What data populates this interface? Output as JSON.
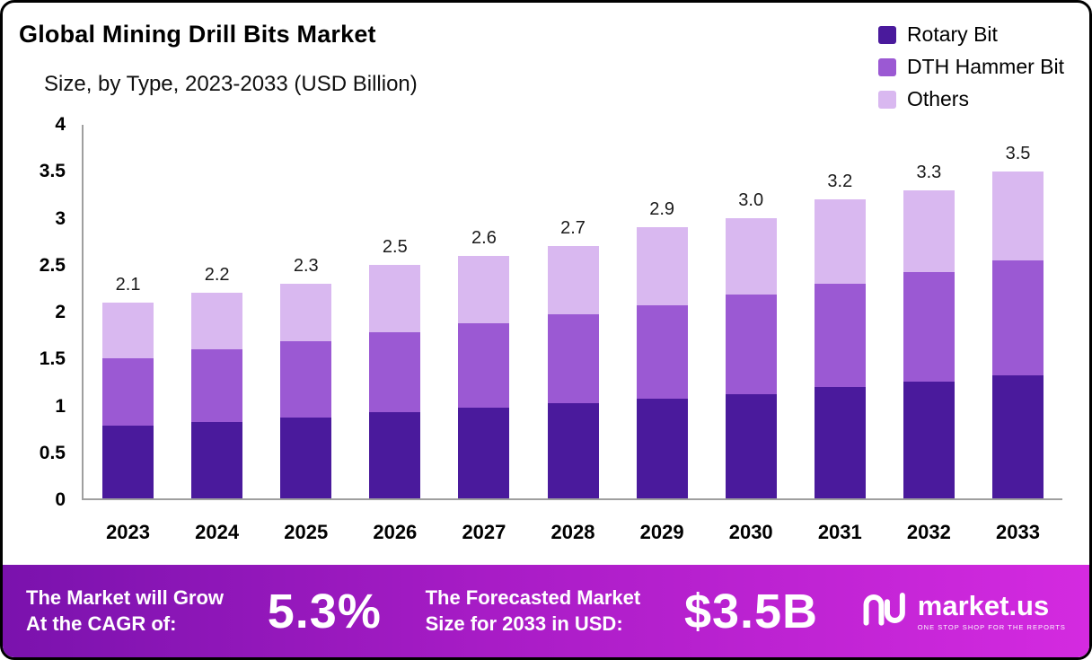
{
  "chart_data": {
    "type": "bar",
    "stacked": true,
    "title": "Global Mining Drill Bits Market",
    "subtitle": "Size, by Type, 2023-2033 (USD Billion)",
    "categories": [
      "2023",
      "2024",
      "2025",
      "2026",
      "2027",
      "2028",
      "2029",
      "2030",
      "2031",
      "2032",
      "2033"
    ],
    "series": [
      {
        "name": "Rotary Bit",
        "color": "#4a1a9c",
        "values": [
          0.78,
          0.82,
          0.87,
          0.92,
          0.97,
          1.02,
          1.07,
          1.12,
          1.19,
          1.25,
          1.32
        ]
      },
      {
        "name": "DTH Hammer Bit",
        "color": "#9b59d3",
        "values": [
          0.72,
          0.78,
          0.81,
          0.86,
          0.91,
          0.95,
          1.0,
          1.06,
          1.11,
          1.17,
          1.23
        ]
      },
      {
        "name": "Others",
        "color": "#d9b8f0",
        "values": [
          0.6,
          0.6,
          0.62,
          0.72,
          0.72,
          0.73,
          0.83,
          0.82,
          0.9,
          0.88,
          0.95
        ]
      }
    ],
    "totals": [
      2.1,
      2.2,
      2.3,
      2.5,
      2.6,
      2.7,
      2.9,
      3.0,
      3.2,
      3.3,
      3.5
    ],
    "total_labels": [
      "2.1",
      "2.2",
      "2.3",
      "2.5",
      "2.6",
      "2.7",
      "2.9",
      "3.0",
      "3.2",
      "3.3",
      "3.5"
    ],
    "ylim": [
      0,
      4
    ],
    "yticks": [
      0,
      0.5,
      1,
      1.5,
      2,
      2.5,
      3,
      3.5,
      4
    ],
    "ytick_labels": [
      "0",
      "0.5",
      "1",
      "1.5",
      "2",
      "2.5",
      "3",
      "3.5",
      "4"
    ],
    "grid": false,
    "legend_position": "top-right"
  },
  "banner": {
    "cagr_line1": "The Market will Grow",
    "cagr_line2": "At the CAGR of:",
    "cagr_value": "5.3%",
    "forecast_line1": "The Forecasted Market",
    "forecast_line2": "Size for 2033 in USD:",
    "forecast_value": "$3.5B",
    "logo_text": "market.us",
    "logo_tagline": "ONE STOP SHOP FOR THE REPORTS"
  }
}
